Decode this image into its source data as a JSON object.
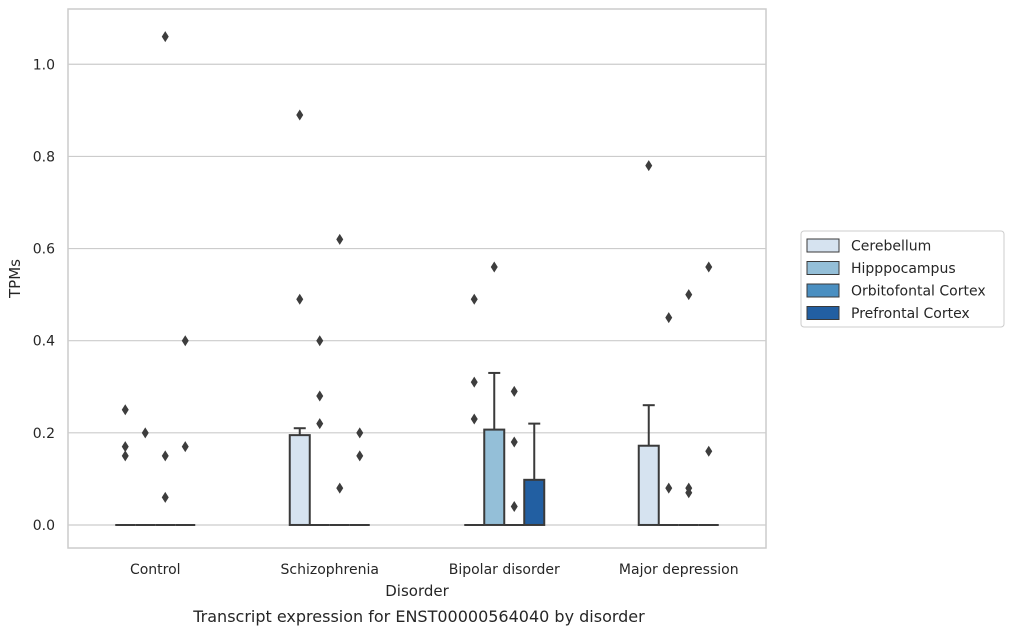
{
  "caption": "Transcript expression for ENST00000564040 by disorder",
  "chart_data": {
    "type": "bar",
    "title": "",
    "xlabel": "Disorder",
    "ylabel": "TPMs",
    "ylim": [
      -0.05,
      1.12
    ],
    "yticks": [
      0.0,
      0.2,
      0.4,
      0.6,
      0.8,
      1.0
    ],
    "ytick_labels": [
      "0.0",
      "0.2",
      "0.4",
      "0.6",
      "0.8",
      "1.0"
    ],
    "categories": [
      "Control",
      "Schizophrenia",
      "Bipolar disorder",
      "Major depression"
    ],
    "grid": "horizontal",
    "legend_position": "right",
    "series": [
      {
        "name": "Cerebellum",
        "color": "#d6e3f0",
        "values": [
          0.0,
          0.195,
          0.0,
          0.172
        ],
        "error_upper": [
          null,
          0.21,
          null,
          0.26
        ]
      },
      {
        "name": "Hipppocampus",
        "color": "#94bfd8",
        "values": [
          0.0,
          0.0,
          0.207,
          0.0
        ],
        "error_upper": [
          null,
          null,
          0.33,
          null
        ]
      },
      {
        "name": "Orbitofontal Cortex",
        "color": "#4a8fc1",
        "values": [
          0.0,
          0.0,
          0.0,
          0.0
        ],
        "error_upper": [
          null,
          null,
          null,
          null
        ]
      },
      {
        "name": "Prefrontal Cortex",
        "color": "#225fa2",
        "values": [
          0.0,
          0.0,
          0.098,
          0.0
        ],
        "error_upper": [
          null,
          null,
          0.22,
          null
        ]
      }
    ],
    "outliers": [
      {
        "category": 0,
        "series": 0,
        "values": [
          0.25,
          0.17,
          0.15
        ]
      },
      {
        "category": 0,
        "series": 1,
        "values": [
          0.2
        ]
      },
      {
        "category": 0,
        "series": 2,
        "values": [
          1.06,
          0.15,
          0.06
        ]
      },
      {
        "category": 0,
        "series": 3,
        "values": [
          0.4,
          0.17
        ]
      },
      {
        "category": 1,
        "series": 0,
        "values": [
          0.89,
          0.49
        ]
      },
      {
        "category": 1,
        "series": 1,
        "values": [
          0.4,
          0.28,
          0.22
        ]
      },
      {
        "category": 1,
        "series": 2,
        "values": [
          0.62,
          0.08
        ]
      },
      {
        "category": 1,
        "series": 3,
        "values": [
          0.2,
          0.15
        ]
      },
      {
        "category": 2,
        "series": 0,
        "values": [
          0.49,
          0.31,
          0.23
        ]
      },
      {
        "category": 2,
        "series": 1,
        "values": [
          0.56
        ]
      },
      {
        "category": 2,
        "series": 2,
        "values": [
          0.29,
          0.18,
          0.04
        ]
      },
      {
        "category": 3,
        "series": 0,
        "values": [
          0.78
        ]
      },
      {
        "category": 3,
        "series": 1,
        "values": [
          0.45,
          0.08
        ]
      },
      {
        "category": 3,
        "series": 2,
        "values": [
          0.5,
          0.08,
          0.07
        ]
      },
      {
        "category": 3,
        "series": 3,
        "values": [
          0.56,
          0.16
        ]
      }
    ]
  }
}
